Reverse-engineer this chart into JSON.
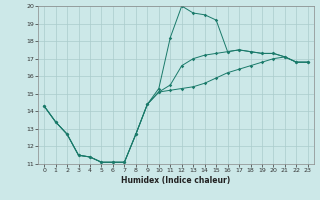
{
  "title": "",
  "xlabel": "Humidex (Indice chaleur)",
  "xlim": [
    -0.5,
    23.5
  ],
  "ylim": [
    11,
    20
  ],
  "xticks": [
    0,
    1,
    2,
    3,
    4,
    5,
    6,
    7,
    8,
    9,
    10,
    11,
    12,
    13,
    14,
    15,
    16,
    17,
    18,
    19,
    20,
    21,
    22,
    23
  ],
  "yticks": [
    11,
    12,
    13,
    14,
    15,
    16,
    17,
    18,
    19,
    20
  ],
  "background_color": "#cce8e8",
  "grid_color": "#aacccc",
  "line_color": "#1a7a6a",
  "line1": {
    "x": [
      0,
      1,
      2,
      3,
      4,
      5,
      6,
      7,
      8,
      9,
      10,
      11,
      12,
      13,
      14,
      15,
      16,
      17,
      18,
      19,
      20,
      21,
      22,
      23
    ],
    "y": [
      14.3,
      13.4,
      12.7,
      11.5,
      11.4,
      11.1,
      11.1,
      11.1,
      12.7,
      14.4,
      15.3,
      18.2,
      20.0,
      19.6,
      19.5,
      19.2,
      17.4,
      17.5,
      17.4,
      17.3,
      17.3,
      17.1,
      16.8,
      16.8
    ]
  },
  "line2": {
    "x": [
      0,
      1,
      2,
      3,
      4,
      5,
      6,
      7,
      8,
      9,
      10,
      11,
      12,
      13,
      14,
      15,
      16,
      17,
      18,
      19,
      20,
      21,
      22,
      23
    ],
    "y": [
      14.3,
      13.4,
      12.7,
      11.5,
      11.4,
      11.1,
      11.1,
      11.1,
      12.7,
      14.4,
      15.1,
      15.5,
      16.6,
      17.0,
      17.2,
      17.3,
      17.4,
      17.5,
      17.4,
      17.3,
      17.3,
      17.1,
      16.8,
      16.8
    ]
  },
  "line3": {
    "x": [
      0,
      1,
      2,
      3,
      4,
      5,
      6,
      7,
      8,
      9,
      10,
      11,
      12,
      13,
      14,
      15,
      16,
      17,
      18,
      19,
      20,
      21,
      22,
      23
    ],
    "y": [
      14.3,
      13.4,
      12.7,
      11.5,
      11.4,
      11.1,
      11.1,
      11.1,
      12.7,
      14.4,
      15.1,
      15.2,
      15.3,
      15.4,
      15.6,
      15.9,
      16.2,
      16.4,
      16.6,
      16.8,
      17.0,
      17.1,
      16.8,
      16.8
    ]
  }
}
